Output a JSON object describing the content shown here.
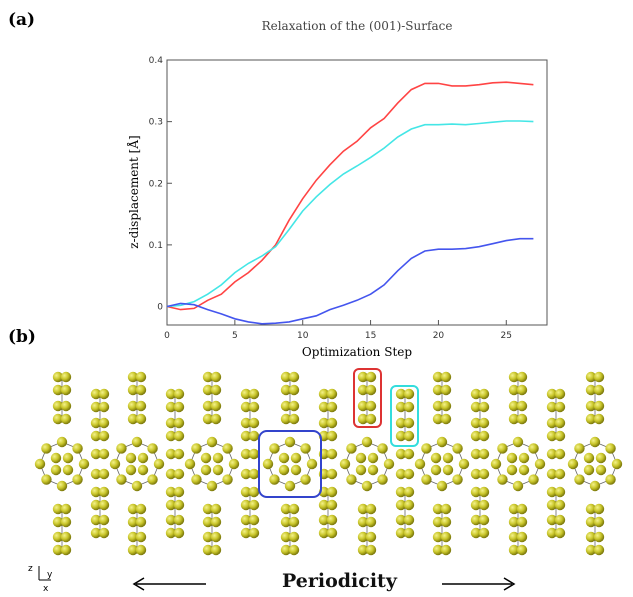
{
  "panel_a_label": "(a)",
  "panel_b_label": "(b)",
  "periodicity_label": "Periodicity",
  "axes_indicator": {
    "z": "z",
    "y": "y",
    "x": "x"
  },
  "chart_data": {
    "type": "line",
    "title": "Relaxation of the (001)-Surface",
    "xlabel": "Optimization Step",
    "ylabel": "z-displacement [Å]",
    "xlim": [
      0,
      28
    ],
    "ylim": [
      -0.03,
      0.4
    ],
    "xticks": [
      0,
      5,
      10,
      15,
      20,
      25
    ],
    "yticks": [
      0,
      0.1,
      0.2,
      0.3,
      0.4
    ],
    "xtick_labels": [
      "0",
      "5",
      "10",
      "15",
      "20",
      "25"
    ],
    "ytick_labels": [
      "0",
      "0.1",
      "0.2",
      "0.3",
      "0.4"
    ],
    "grid": false,
    "series": [
      {
        "color": "#ff4444",
        "x": [
          0,
          1,
          2,
          3,
          4,
          5,
          6,
          7,
          8,
          9,
          10,
          11,
          12,
          13,
          14,
          15,
          16,
          17,
          18,
          19,
          20,
          21,
          22,
          23,
          24,
          25,
          26,
          27
        ],
        "y": [
          0,
          -0.005,
          -0.003,
          0.01,
          0.02,
          0.04,
          0.055,
          0.075,
          0.1,
          0.14,
          0.175,
          0.205,
          0.23,
          0.252,
          0.268,
          0.29,
          0.305,
          0.33,
          0.352,
          0.362,
          0.362,
          0.358,
          0.358,
          0.36,
          0.363,
          0.364,
          0.362,
          0.36
        ]
      },
      {
        "color": "#44e6e6",
        "x": [
          0,
          1,
          2,
          3,
          4,
          5,
          6,
          7,
          8,
          9,
          10,
          11,
          12,
          13,
          14,
          15,
          16,
          17,
          18,
          19,
          20,
          21,
          22,
          23,
          24,
          25,
          26,
          27
        ],
        "y": [
          0,
          0.002,
          0.008,
          0.02,
          0.035,
          0.055,
          0.07,
          0.082,
          0.097,
          0.125,
          0.155,
          0.178,
          0.198,
          0.215,
          0.228,
          0.242,
          0.257,
          0.275,
          0.288,
          0.295,
          0.295,
          0.296,
          0.295,
          0.297,
          0.299,
          0.301,
          0.301,
          0.3
        ]
      },
      {
        "color": "#4455ee",
        "x": [
          0,
          1,
          2,
          3,
          4,
          5,
          6,
          7,
          8,
          9,
          10,
          11,
          12,
          13,
          14,
          15,
          16,
          17,
          18,
          19,
          20,
          21,
          22,
          23,
          24,
          25,
          26,
          27
        ],
        "y": [
          0,
          0.005,
          0.003,
          -0.005,
          -0.012,
          -0.02,
          -0.025,
          -0.028,
          -0.027,
          -0.025,
          -0.02,
          -0.015,
          -0.005,
          0.002,
          0.01,
          0.02,
          0.035,
          0.058,
          0.078,
          0.09,
          0.093,
          0.093,
          0.094,
          0.097,
          0.102,
          0.107,
          0.11,
          0.11
        ]
      }
    ]
  }
}
